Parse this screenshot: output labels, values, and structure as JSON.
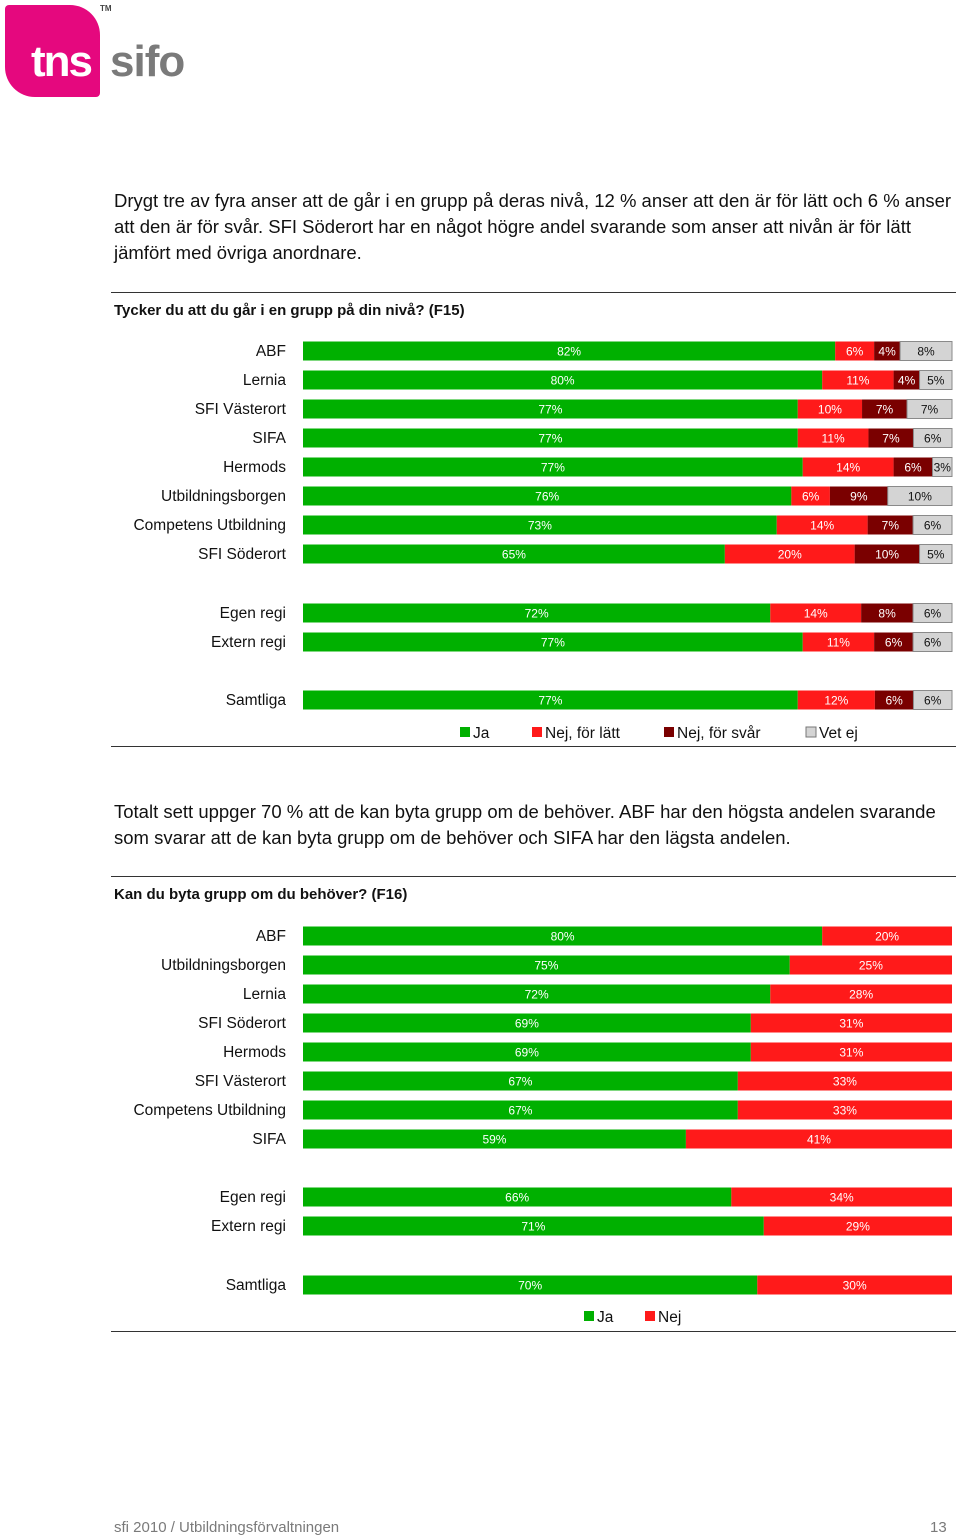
{
  "logo": {
    "tns": "tns",
    "sifo": "sifo",
    "tm": "TM"
  },
  "intro1": "Drygt tre av fyra anser att de går i en grupp på deras nivå, 12 % anser att den är för lätt och 6 % anser att den är för svår. SFI Söderort har en något högre andel svarande som anser att nivån är för lätt jämfört med övriga anordnare.",
  "intro2": "Totalt sett uppger 70 % att de kan byta grupp om de behöver. ABF har den högsta andelen svarande som svarar att de kan byta grupp om de behöver och SIFA har den lägsta andelen.",
  "footer": {
    "left": "sfi 2010 / Utbildningsförvaltningen",
    "page": "13"
  },
  "colors": {
    "ja": "#00b000",
    "nej_latt": "#ff1a1a",
    "nej_svar": "#7a0000",
    "vet_ej": "#d4d4d4"
  },
  "chart_data": [
    {
      "type": "bar",
      "orientation": "horizontal-stacked",
      "title": "Tycker du att du går i en grupp på din nivå? (F15)",
      "series": [
        {
          "name": "Ja",
          "color": "#00b000"
        },
        {
          "name": "Nej, för lätt",
          "color": "#ff1a1a"
        },
        {
          "name": "Nej, för svår",
          "color": "#7a0000"
        },
        {
          "name": "Vet ej",
          "color": "#d4d4d4"
        }
      ],
      "rows": [
        {
          "label": "ABF",
          "values": [
            82,
            6,
            4,
            8
          ]
        },
        {
          "label": "Lernia",
          "values": [
            80,
            11,
            4,
            5
          ]
        },
        {
          "label": "SFI Västerort",
          "values": [
            77,
            10,
            7,
            7
          ]
        },
        {
          "label": "SIFA",
          "values": [
            77,
            11,
            7,
            6
          ]
        },
        {
          "label": "Hermods",
          "values": [
            77,
            14,
            6,
            3
          ]
        },
        {
          "label": "Utbildningsborgen",
          "values": [
            76,
            6,
            9,
            10
          ]
        },
        {
          "label": "Competens Utbildning",
          "values": [
            73,
            14,
            7,
            6
          ]
        },
        {
          "label": "SFI Söderort",
          "values": [
            65,
            20,
            10,
            5
          ]
        },
        {
          "label": "Egen regi",
          "values": [
            72,
            14,
            8,
            6
          ]
        },
        {
          "label": "Extern regi",
          "values": [
            77,
            11,
            6,
            6
          ]
        },
        {
          "label": "Samtliga",
          "values": [
            77,
            12,
            6,
            6
          ]
        }
      ],
      "legend_position": "bottom"
    },
    {
      "type": "bar",
      "orientation": "horizontal-stacked",
      "title": "Kan du byta grupp om du behöver? (F16)",
      "series": [
        {
          "name": "Ja",
          "color": "#00b000"
        },
        {
          "name": "Nej",
          "color": "#ff1a1a"
        }
      ],
      "rows": [
        {
          "label": "ABF",
          "values": [
            80,
            20
          ]
        },
        {
          "label": "Utbildningsborgen",
          "values": [
            75,
            25
          ]
        },
        {
          "label": "Lernia",
          "values": [
            72,
            28
          ]
        },
        {
          "label": "SFI Söderort",
          "values": [
            69,
            31
          ]
        },
        {
          "label": "Hermods",
          "values": [
            69,
            31
          ]
        },
        {
          "label": "SFI Västerort",
          "values": [
            67,
            33
          ]
        },
        {
          "label": "Competens Utbildning",
          "values": [
            67,
            33
          ]
        },
        {
          "label": "SIFA",
          "values": [
            59,
            41
          ]
        },
        {
          "label": "Egen regi",
          "values": [
            66,
            34
          ]
        },
        {
          "label": "Extern regi",
          "values": [
            71,
            29
          ]
        },
        {
          "label": "Samtliga",
          "values": [
            70,
            30
          ]
        }
      ],
      "legend_position": "bottom"
    }
  ]
}
